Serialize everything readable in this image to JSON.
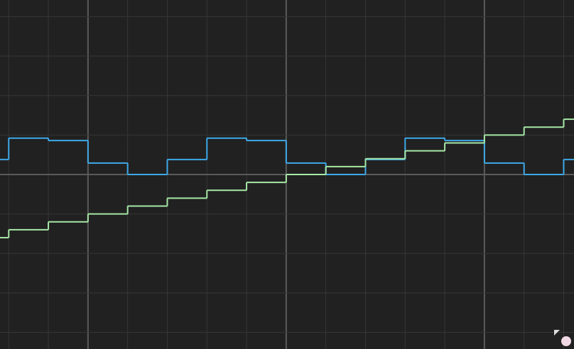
{
  "chart_data": {
    "type": "line",
    "step": "post",
    "x": [
      -7.22,
      -7,
      -6,
      -5,
      -4,
      -3,
      -2,
      -1,
      0,
      1,
      2,
      3,
      4,
      5,
      6,
      7
    ],
    "series": [
      {
        "color": "#3ea9e8",
        "values": [
          0.38,
          0.92,
          0.86,
          0.29,
          0,
          0.38,
          0.92,
          0.86,
          0.29,
          0,
          0.38,
          0.92,
          0.86,
          0.29,
          0,
          0.38
        ]
      },
      {
        "color": "#a6e8a6",
        "values": [
          -1.6,
          -1.4,
          -1.2,
          -1.0,
          -0.8,
          -0.6,
          -0.4,
          -0.2,
          0,
          0.2,
          0.4,
          0.6,
          0.8,
          1.0,
          1.2,
          1.4
        ]
      }
    ],
    "xlim": [
      -7.22,
      7.26
    ],
    "ylim": [
      -4.42,
      4.42
    ],
    "xticks": [
      -7,
      -6,
      -5,
      -4,
      -3,
      -2,
      -1,
      0,
      1,
      2,
      3,
      4,
      5,
      6,
      7
    ],
    "yticks": [
      -4,
      -3,
      -2,
      -1,
      0,
      1,
      2,
      3,
      4
    ],
    "major_xticks": [
      -5,
      0,
      5
    ],
    "major_yticks": [
      0
    ],
    "grid": true
  }
}
